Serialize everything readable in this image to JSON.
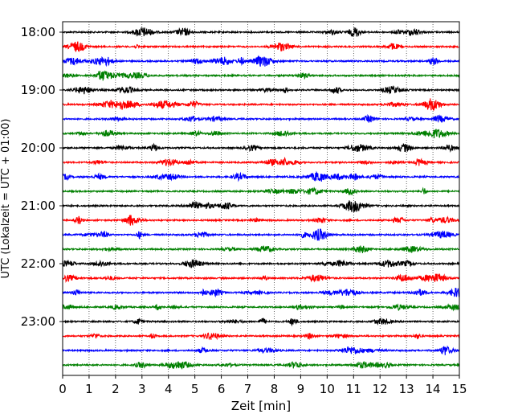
{
  "chart_data": {
    "type": "line",
    "title": "",
    "xlabel": "Zeit  [min]",
    "ylabel": "UTC (Lokalzeit = UTC + 01:00)",
    "xlim": [
      0,
      15
    ],
    "x_ticks": [
      "0",
      "1",
      "2",
      "3",
      "4",
      "5",
      "6",
      "7",
      "8",
      "9",
      "10",
      "11",
      "12",
      "13",
      "14",
      "15"
    ],
    "y_ticks": [
      "18:00",
      "19:00",
      "20:00",
      "21:00",
      "22:00",
      "23:00"
    ],
    "grid": "vertical dotted",
    "trace_minutes": 15,
    "trace_colors": [
      "#000000",
      "#ff0000",
      "#0000ff",
      "#008000"
    ],
    "traces": [
      {
        "start": "18:00"
      },
      {
        "start": "18:15"
      },
      {
        "start": "18:30"
      },
      {
        "start": "18:45"
      },
      {
        "start": "19:00"
      },
      {
        "start": "19:15"
      },
      {
        "start": "19:30"
      },
      {
        "start": "19:45"
      },
      {
        "start": "20:00"
      },
      {
        "start": "20:15"
      },
      {
        "start": "20:30"
      },
      {
        "start": "20:45"
      },
      {
        "start": "21:00"
      },
      {
        "start": "21:15"
      },
      {
        "start": "21:30"
      },
      {
        "start": "21:45"
      },
      {
        "start": "22:00"
      },
      {
        "start": "22:15"
      },
      {
        "start": "22:30"
      },
      {
        "start": "22:45"
      },
      {
        "start": "23:00"
      },
      {
        "start": "23:15"
      },
      {
        "start": "23:30"
      },
      {
        "start": "23:45"
      }
    ]
  }
}
